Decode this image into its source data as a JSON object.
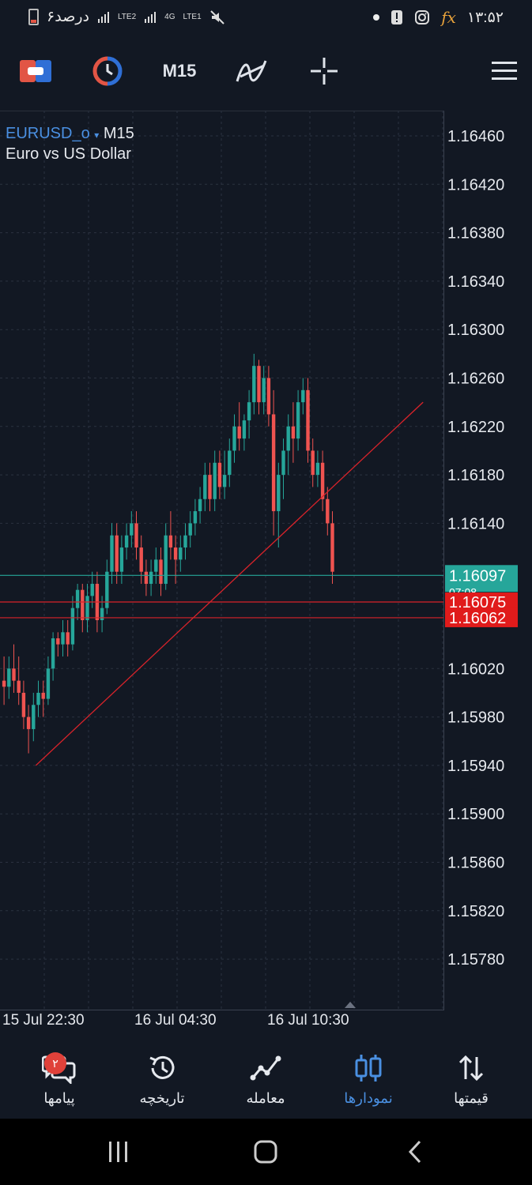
{
  "status_bar": {
    "battery_text": "۶درصد",
    "net_1": "LTE2",
    "net_2": "LTE1",
    "net_2_top": "4G",
    "time": "۱۳:۵۲",
    "fx": "fx"
  },
  "toolbar": {
    "timeframe": "M15",
    "colors": {
      "red": "#e25545",
      "blue": "#2f6fd6"
    }
  },
  "chart": {
    "symbol": "EURUSD_o",
    "dropdown_glyph": "▾",
    "timeframe": "M15",
    "description": "Euro vs US Dollar",
    "y_ticks": [
      "1.16460",
      "1.16420",
      "1.16380",
      "1.16340",
      "1.16300",
      "1.16260",
      "1.16220",
      "1.16180",
      "1.16140",
      "1.16020",
      "1.15980",
      "1.15940",
      "1.15900",
      "1.15860",
      "1.15820",
      "1.15780"
    ],
    "x_labels": [
      "15 Jul 22:30",
      "16 Jul 04:30",
      "16 Jul 10:30"
    ],
    "price_bid": "1.16097",
    "price_bid_sub": "07:08",
    "level_1": "1.16075",
    "level_2": "1.16062",
    "colors": {
      "bull": "#26a69a",
      "bear": "#ef5350",
      "line": "#d8232a",
      "bid": "#26a69a",
      "grid": "#2b3240"
    }
  },
  "chart_data": {
    "type": "candlestick",
    "y_range": [
      1.1576,
      1.1648
    ],
    "candles": [
      [
        1.1601,
        1.1603,
        1.1599,
        1.16005
      ],
      [
        1.16005,
        1.1603,
        1.15995,
        1.1602
      ],
      [
        1.1602,
        1.1604,
        1.16,
        1.1601
      ],
      [
        1.1601,
        1.1603,
        1.1599,
        1.16
      ],
      [
        1.16,
        1.1601,
        1.1597,
        1.1598
      ],
      [
        1.1598,
        1.1599,
        1.1595,
        1.1597
      ],
      [
        1.1597,
        1.16,
        1.1596,
        1.1599
      ],
      [
        1.1599,
        1.1601,
        1.1598,
        1.16
      ],
      [
        1.16,
        1.1601,
        1.1598,
        1.15995
      ],
      [
        1.15995,
        1.1603,
        1.1599,
        1.1602
      ],
      [
        1.1602,
        1.1605,
        1.1601,
        1.16045
      ],
      [
        1.16045,
        1.1605,
        1.1603,
        1.1604
      ],
      [
        1.1604,
        1.1606,
        1.1603,
        1.1605
      ],
      [
        1.1605,
        1.1606,
        1.1603,
        1.1604
      ],
      [
        1.1604,
        1.1608,
        1.16035,
        1.1607
      ],
      [
        1.1607,
        1.1609,
        1.1606,
        1.16085
      ],
      [
        1.16085,
        1.1609,
        1.1605,
        1.1606
      ],
      [
        1.1606,
        1.1609,
        1.1605,
        1.1608
      ],
      [
        1.1608,
        1.161,
        1.1607,
        1.1609
      ],
      [
        1.1609,
        1.161,
        1.1605,
        1.1606
      ],
      [
        1.1606,
        1.1608,
        1.1605,
        1.1607
      ],
      [
        1.1607,
        1.1611,
        1.16065,
        1.161
      ],
      [
        1.161,
        1.1614,
        1.1609,
        1.1613
      ],
      [
        1.1613,
        1.1614,
        1.1609,
        1.161
      ],
      [
        1.161,
        1.1613,
        1.1609,
        1.1612
      ],
      [
        1.1612,
        1.1614,
        1.1611,
        1.1613
      ],
      [
        1.1613,
        1.1615,
        1.1612,
        1.1614
      ],
      [
        1.1614,
        1.1615,
        1.1611,
        1.1612
      ],
      [
        1.1612,
        1.1613,
        1.1609,
        1.161
      ],
      [
        1.161,
        1.1611,
        1.1608,
        1.1609
      ],
      [
        1.1609,
        1.1611,
        1.1608,
        1.161
      ],
      [
        1.161,
        1.1612,
        1.1609,
        1.1611
      ],
      [
        1.1611,
        1.1612,
        1.1608,
        1.1609
      ],
      [
        1.1609,
        1.1614,
        1.16085,
        1.1613
      ],
      [
        1.1613,
        1.1615,
        1.1611,
        1.1612
      ],
      [
        1.1612,
        1.1613,
        1.1609,
        1.1611
      ],
      [
        1.1611,
        1.1613,
        1.161,
        1.1612
      ],
      [
        1.1612,
        1.1614,
        1.1611,
        1.1613
      ],
      [
        1.1613,
        1.1615,
        1.1612,
        1.1614
      ],
      [
        1.1614,
        1.1616,
        1.1613,
        1.1615
      ],
      [
        1.1615,
        1.1617,
        1.1614,
        1.1616
      ],
      [
        1.1616,
        1.1619,
        1.1615,
        1.1618
      ],
      [
        1.1618,
        1.1619,
        1.1615,
        1.1616
      ],
      [
        1.1616,
        1.162,
        1.1615,
        1.1619
      ],
      [
        1.1619,
        1.162,
        1.1616,
        1.1617
      ],
      [
        1.1617,
        1.162,
        1.1616,
        1.1618
      ],
      [
        1.1618,
        1.1621,
        1.1617,
        1.162
      ],
      [
        1.162,
        1.1623,
        1.1619,
        1.1622
      ],
      [
        1.1622,
        1.1624,
        1.162,
        1.1621
      ],
      [
        1.1621,
        1.1623,
        1.162,
        1.16225
      ],
      [
        1.16225,
        1.1625,
        1.1621,
        1.1624
      ],
      [
        1.1624,
        1.1628,
        1.1623,
        1.1627
      ],
      [
        1.1627,
        1.16275,
        1.1623,
        1.1624
      ],
      [
        1.1624,
        1.1627,
        1.1623,
        1.1626
      ],
      [
        1.1626,
        1.1627,
        1.1622,
        1.1623
      ],
      [
        1.1623,
        1.1625,
        1.1613,
        1.1615
      ],
      [
        1.1615,
        1.1619,
        1.1612,
        1.1618
      ],
      [
        1.1618,
        1.1621,
        1.1616,
        1.162
      ],
      [
        1.162,
        1.1623,
        1.1618,
        1.1622
      ],
      [
        1.1622,
        1.1624,
        1.1619,
        1.1621
      ],
      [
        1.1621,
        1.1625,
        1.162,
        1.1624
      ],
      [
        1.1624,
        1.1626,
        1.1623,
        1.1625
      ],
      [
        1.1625,
        1.1626,
        1.1619,
        1.162
      ],
      [
        1.162,
        1.1621,
        1.1617,
        1.1618
      ],
      [
        1.1618,
        1.162,
        1.1617,
        1.1619
      ],
      [
        1.1619,
        1.162,
        1.1615,
        1.1616
      ],
      [
        1.1616,
        1.1617,
        1.1613,
        1.1614
      ],
      [
        1.1614,
        1.1615,
        1.1609,
        1.161
      ]
    ],
    "trendline": {
      "from": [
        7,
        1.1594
      ],
      "to": [
        86,
        1.1624
      ]
    },
    "hlines": [
      1.16097,
      1.16075,
      1.16062
    ]
  },
  "bottom_nav": {
    "items": [
      {
        "label": "پیامها",
        "badge": "۲"
      },
      {
        "label": "تاریخچه"
      },
      {
        "label": "معامله"
      },
      {
        "label": "نمودارها"
      },
      {
        "label": "قیمتها"
      }
    ]
  }
}
